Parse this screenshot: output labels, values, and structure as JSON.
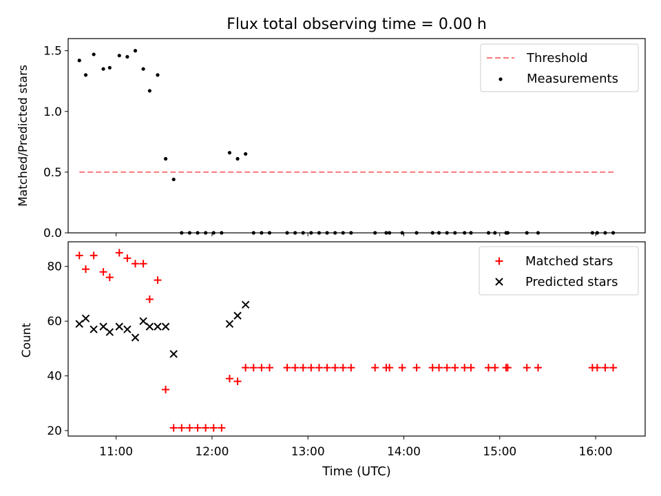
{
  "title": "Flux total observing time = 0.00 h",
  "xlabel": "Time (UTC)",
  "x_ticks": [
    "11:00",
    "12:00",
    "13:00",
    "14:00",
    "15:00",
    "16:00"
  ],
  "colors": {
    "threshold": "#ff7777",
    "measurements": "#000000",
    "matched": "#ff0000",
    "predicted": "#000000"
  },
  "chart_data": [
    {
      "type": "scatter",
      "panel": "top",
      "ylabel": "Matched/Predicted stars",
      "xlim": [
        "10:30",
        "16:31"
      ],
      "ylim": [
        0,
        1.6
      ],
      "y_ticks": [
        "0.0",
        "0.5",
        "1.0",
        "1.5"
      ],
      "legend_position": "upper right",
      "threshold": {
        "name": "Threshold",
        "value": 0.5,
        "x_range": [
          "10:37",
          "16:12"
        ]
      },
      "series": [
        {
          "name": "Measurements",
          "points": [
            [
              "10:37",
              1.42
            ],
            [
              "10:41",
              1.3
            ],
            [
              "10:46",
              1.47
            ],
            [
              "10:52",
              1.35
            ],
            [
              "10:56",
              1.36
            ],
            [
              "11:02",
              1.46
            ],
            [
              "11:07",
              1.45
            ],
            [
              "11:12",
              1.5
            ],
            [
              "11:17",
              1.35
            ],
            [
              "11:21",
              1.17
            ],
            [
              "11:26",
              1.3
            ],
            [
              "11:31",
              0.61
            ],
            [
              "11:36",
              0.44
            ],
            [
              "11:41",
              0.0
            ],
            [
              "11:46",
              0.0
            ],
            [
              "11:51",
              0.0
            ],
            [
              "11:56",
              0.0
            ],
            [
              "12:01",
              0.0
            ],
            [
              "12:06",
              0.0
            ],
            [
              "12:11",
              0.66
            ],
            [
              "12:16",
              0.61
            ],
            [
              "12:21",
              0.65
            ],
            [
              "12:26",
              0.0
            ],
            [
              "12:31",
              0.0
            ],
            [
              "12:36",
              0.0
            ],
            [
              "12:47",
              0.0
            ],
            [
              "12:52",
              0.0
            ],
            [
              "12:57",
              0.0
            ],
            [
              "13:02",
              0.0
            ],
            [
              "13:07",
              0.0
            ],
            [
              "13:12",
              0.0
            ],
            [
              "13:17",
              0.0
            ],
            [
              "13:22",
              0.0
            ],
            [
              "13:27",
              0.0
            ],
            [
              "13:42",
              0.0
            ],
            [
              "13:49",
              0.0
            ],
            [
              "13:51",
              0.0
            ],
            [
              "13:59",
              0.0
            ],
            [
              "14:08",
              0.0
            ],
            [
              "14:18",
              0.0
            ],
            [
              "14:22",
              0.0
            ],
            [
              "14:27",
              0.0
            ],
            [
              "14:32",
              0.0
            ],
            [
              "14:38",
              0.0
            ],
            [
              "14:42",
              0.0
            ],
            [
              "14:53",
              0.0
            ],
            [
              "14:57",
              0.0
            ],
            [
              "15:04",
              0.0
            ],
            [
              "15:05",
              0.0
            ],
            [
              "15:17",
              0.0
            ],
            [
              "15:24",
              0.0
            ],
            [
              "15:58",
              0.0
            ],
            [
              "16:01",
              0.0
            ],
            [
              "16:06",
              0.0
            ],
            [
              "16:11",
              0.0
            ]
          ]
        }
      ]
    },
    {
      "type": "scatter",
      "panel": "bottom",
      "ylabel": "Count",
      "xlim": [
        "10:30",
        "16:31"
      ],
      "ylim": [
        18,
        89
      ],
      "y_ticks": [
        "20",
        "40",
        "60",
        "80"
      ],
      "legend_position": "upper right",
      "series": [
        {
          "name": "Matched stars",
          "points": [
            [
              "10:37",
              84
            ],
            [
              "10:41",
              79
            ],
            [
              "10:46",
              84
            ],
            [
              "10:52",
              78
            ],
            [
              "10:56",
              76
            ],
            [
              "11:02",
              85
            ],
            [
              "11:07",
              83
            ],
            [
              "11:12",
              81
            ],
            [
              "11:17",
              81
            ],
            [
              "11:21",
              68
            ],
            [
              "11:26",
              75
            ],
            [
              "11:31",
              35
            ],
            [
              "11:36",
              21
            ],
            [
              "11:41",
              21
            ],
            [
              "11:46",
              21
            ],
            [
              "11:51",
              21
            ],
            [
              "11:56",
              21
            ],
            [
              "12:01",
              21
            ],
            [
              "12:06",
              21
            ],
            [
              "12:11",
              39
            ],
            [
              "12:16",
              38
            ],
            [
              "12:21",
              43
            ],
            [
              "12:26",
              43
            ],
            [
              "12:31",
              43
            ],
            [
              "12:36",
              43
            ],
            [
              "12:47",
              43
            ],
            [
              "12:52",
              43
            ],
            [
              "12:57",
              43
            ],
            [
              "13:02",
              43
            ],
            [
              "13:07",
              43
            ],
            [
              "13:12",
              43
            ],
            [
              "13:17",
              43
            ],
            [
              "13:22",
              43
            ],
            [
              "13:27",
              43
            ],
            [
              "13:42",
              43
            ],
            [
              "13:49",
              43
            ],
            [
              "13:51",
              43
            ],
            [
              "13:59",
              43
            ],
            [
              "14:08",
              43
            ],
            [
              "14:18",
              43
            ],
            [
              "14:22",
              43
            ],
            [
              "14:27",
              43
            ],
            [
              "14:32",
              43
            ],
            [
              "14:38",
              43
            ],
            [
              "14:42",
              43
            ],
            [
              "14:53",
              43
            ],
            [
              "14:57",
              43
            ],
            [
              "15:04",
              43
            ],
            [
              "15:05",
              43
            ],
            [
              "15:17",
              43
            ],
            [
              "15:24",
              43
            ],
            [
              "15:58",
              43
            ],
            [
              "16:01",
              43
            ],
            [
              "16:06",
              43
            ],
            [
              "16:11",
              43
            ]
          ]
        },
        {
          "name": "Predicted stars",
          "points": [
            [
              "10:37",
              59
            ],
            [
              "10:41",
              61
            ],
            [
              "10:46",
              57
            ],
            [
              "10:52",
              58
            ],
            [
              "10:56",
              56
            ],
            [
              "11:02",
              58
            ],
            [
              "11:07",
              57
            ],
            [
              "11:12",
              54
            ],
            [
              "11:17",
              60
            ],
            [
              "11:21",
              58
            ],
            [
              "11:26",
              58
            ],
            [
              "11:31",
              58
            ],
            [
              "11:36",
              48
            ],
            [
              "12:11",
              59
            ],
            [
              "12:16",
              62
            ],
            [
              "12:21",
              66
            ]
          ]
        }
      ]
    }
  ]
}
